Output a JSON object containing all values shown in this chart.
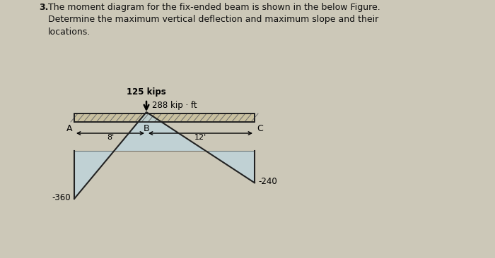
{
  "title_num": "3.",
  "title_text": "The moment diagram for the fix-ended beam is shown in the below Figure.\nDetermine the maximum vertical deflection and maximum slope and their\nlocations.",
  "load_value": "125 kips",
  "beam_points": [
    "A",
    "B",
    "C"
  ],
  "dist_AB_label": "8'",
  "dist_BC_label": "12'",
  "moment_A": -360,
  "moment_B": 288,
  "moment_C": -240,
  "label_288": "288 kip · ft",
  "label_360": "-360",
  "label_240": "-240",
  "fill_color": "#b8d8e8",
  "fill_alpha": 0.6,
  "line_color": "#222222",
  "beam_fill": "#c8c0a0",
  "beam_hatch": "#666666",
  "fig_bg": "#ccc8b8"
}
